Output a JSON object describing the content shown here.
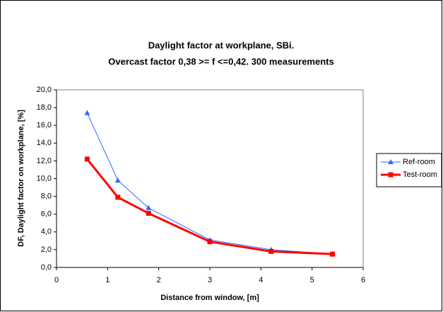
{
  "chart_data": {
    "type": "line",
    "title": "Daylight factor at workplane, SBi.",
    "subtitle": "Overcast factor 0,38 >= f <=0,42. 300 measurements",
    "x_label": "Distance from window, [m]",
    "y_label": "DF, Daylight factor on workplane, [%]",
    "x": [
      0.6,
      1.2,
      1.8,
      3,
      4.2,
      5.4
    ],
    "series": [
      {
        "name": "Ref-room",
        "color": "#3366ff",
        "marker": "triangle",
        "values": [
          17.4,
          9.8,
          6.7,
          3.1,
          2.0,
          1.5
        ]
      },
      {
        "name": "Test-room",
        "color": "#ff0000",
        "marker": "square",
        "values": [
          12.2,
          7.9,
          6.1,
          2.9,
          1.8,
          1.5
        ]
      }
    ],
    "xlim": [
      0,
      6
    ],
    "xticks": [
      0,
      1,
      2,
      3,
      4,
      5,
      6
    ],
    "ylim": [
      0,
      20
    ],
    "yticks": [
      {
        "value": 0,
        "label": "0,0"
      },
      {
        "value": 2,
        "label": "2,0"
      },
      {
        "value": 4,
        "label": "4,0"
      },
      {
        "value": 6,
        "label": "6,0"
      },
      {
        "value": 8,
        "label": "8,0"
      },
      {
        "value": 10,
        "label": "10,0"
      },
      {
        "value": 12,
        "label": "12,0"
      },
      {
        "value": 14,
        "label": "14,0"
      },
      {
        "value": 16,
        "label": "16,0"
      },
      {
        "value": 18,
        "label": "18,0"
      },
      {
        "value": 20,
        "label": "20,0"
      }
    ],
    "grid": false,
    "legend": "right"
  }
}
